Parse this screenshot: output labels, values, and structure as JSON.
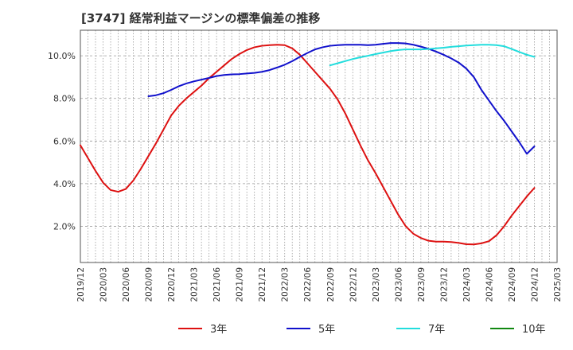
{
  "chart_data": {
    "type": "line",
    "title": "[3747]  経常利益マージンの標準偏差の推移",
    "xlabel": "",
    "ylabel": "",
    "x_ticks": [
      "2019/12",
      "2020/03",
      "2020/06",
      "2020/09",
      "2020/12",
      "2021/03",
      "2021/06",
      "2021/09",
      "2021/12",
      "2022/03",
      "2022/06",
      "2022/09",
      "2022/12",
      "2023/03",
      "2023/06",
      "2023/09",
      "2023/12",
      "2024/03",
      "2024/06",
      "2024/09",
      "2024/12",
      "2025/03"
    ],
    "y_ticks": [
      "2.0%",
      "4.0%",
      "6.0%",
      "8.0%",
      "10.0%"
    ],
    "ylim": [
      0.3,
      11.2
    ],
    "grid": true,
    "legend_position": "bottom",
    "colors": {
      "3年": "#dd1111",
      "5年": "#1111cc",
      "7年": "#22dddd",
      "10年": "#118811"
    },
    "series": [
      {
        "name": "3年",
        "x": [
          "2019/12",
          "2020/01",
          "2020/02",
          "2020/03",
          "2020/04",
          "2020/05",
          "2020/06",
          "2020/07",
          "2020/08",
          "2020/09",
          "2020/10",
          "2020/11",
          "2020/12",
          "2021/01",
          "2021/02",
          "2021/03",
          "2021/04",
          "2021/05",
          "2021/06",
          "2021/07",
          "2021/08",
          "2021/09",
          "2021/10",
          "2021/11",
          "2021/12",
          "2022/01",
          "2022/02",
          "2022/03",
          "2022/04",
          "2022/05",
          "2022/06",
          "2022/07",
          "2022/08",
          "2022/09",
          "2022/10",
          "2022/11",
          "2022/12",
          "2023/01",
          "2023/02",
          "2023/03",
          "2023/04",
          "2023/05",
          "2023/06",
          "2023/07",
          "2023/08",
          "2023/09",
          "2023/10",
          "2023/11",
          "2023/12",
          "2024/01",
          "2024/02",
          "2024/03",
          "2024/04",
          "2024/05",
          "2024/06",
          "2024/07",
          "2024/08",
          "2024/09",
          "2024/10",
          "2024/11",
          "2024/12"
        ],
        "values": [
          5.8,
          5.2,
          4.6,
          4.05,
          3.7,
          3.62,
          3.75,
          4.15,
          4.7,
          5.3,
          5.9,
          6.55,
          7.2,
          7.65,
          8.0,
          8.3,
          8.6,
          8.95,
          9.25,
          9.55,
          9.85,
          10.08,
          10.27,
          10.4,
          10.47,
          10.5,
          10.52,
          10.5,
          10.35,
          10.05,
          9.65,
          9.25,
          8.85,
          8.45,
          7.95,
          7.3,
          6.55,
          5.8,
          5.1,
          4.5,
          3.85,
          3.2,
          2.55,
          2.0,
          1.65,
          1.45,
          1.32,
          1.28,
          1.28,
          1.26,
          1.22,
          1.16,
          1.15,
          1.2,
          1.3,
          1.58,
          2.0,
          2.5,
          2.95,
          3.4,
          3.8
        ]
      },
      {
        "name": "5年",
        "x": [
          "2020/09",
          "2020/10",
          "2020/11",
          "2020/12",
          "2021/01",
          "2021/02",
          "2021/03",
          "2021/04",
          "2021/05",
          "2021/06",
          "2021/07",
          "2021/08",
          "2021/09",
          "2021/10",
          "2021/11",
          "2021/12",
          "2022/01",
          "2022/02",
          "2022/03",
          "2022/04",
          "2022/05",
          "2022/06",
          "2022/07",
          "2022/08",
          "2022/09",
          "2022/10",
          "2022/11",
          "2022/12",
          "2023/01",
          "2023/02",
          "2023/03",
          "2023/04",
          "2023/05",
          "2023/06",
          "2023/07",
          "2023/08",
          "2023/09",
          "2023/10",
          "2023/11",
          "2023/12",
          "2024/01",
          "2024/02",
          "2024/03",
          "2024/04",
          "2024/05",
          "2024/06",
          "2024/07",
          "2024/08",
          "2024/09",
          "2024/10",
          "2024/11",
          "2024/12"
        ],
        "values": [
          8.1,
          8.15,
          8.25,
          8.4,
          8.57,
          8.7,
          8.8,
          8.88,
          8.96,
          9.05,
          9.1,
          9.13,
          9.14,
          9.17,
          9.2,
          9.25,
          9.33,
          9.45,
          9.58,
          9.75,
          9.95,
          10.13,
          10.3,
          10.4,
          10.47,
          10.5,
          10.52,
          10.52,
          10.52,
          10.5,
          10.52,
          10.56,
          10.6,
          10.6,
          10.58,
          10.52,
          10.43,
          10.33,
          10.2,
          10.05,
          9.88,
          9.68,
          9.4,
          9.0,
          8.4,
          7.9,
          7.4,
          6.95,
          6.45,
          5.95,
          5.4,
          5.75
        ]
      },
      {
        "name": "7年",
        "x": [
          "2022/09",
          "2022/10",
          "2022/11",
          "2022/12",
          "2023/01",
          "2023/02",
          "2023/03",
          "2023/04",
          "2023/05",
          "2023/06",
          "2023/07",
          "2023/08",
          "2023/09",
          "2023/10",
          "2023/11",
          "2023/12",
          "2024/01",
          "2024/02",
          "2024/03",
          "2024/04",
          "2024/05",
          "2024/06",
          "2024/07",
          "2024/08",
          "2024/09",
          "2024/10",
          "2024/11",
          "2024/12"
        ],
        "values": [
          9.55,
          9.65,
          9.75,
          9.85,
          9.93,
          10.0,
          10.08,
          10.15,
          10.22,
          10.27,
          10.3,
          10.3,
          10.3,
          10.32,
          10.35,
          10.38,
          10.42,
          10.45,
          10.48,
          10.5,
          10.52,
          10.52,
          10.5,
          10.45,
          10.32,
          10.18,
          10.05,
          9.95
        ]
      },
      {
        "name": "10年",
        "x": [],
        "values": []
      }
    ]
  }
}
